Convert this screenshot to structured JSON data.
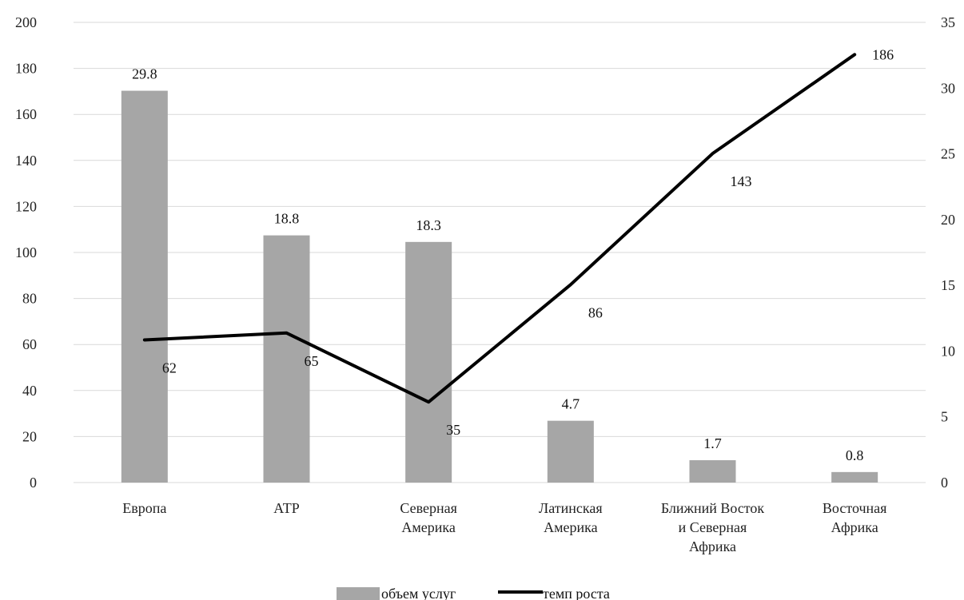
{
  "chart_data": {
    "type": "bar",
    "categories": [
      [
        "Европа"
      ],
      [
        "АТР"
      ],
      [
        "Северная",
        "Америка"
      ],
      [
        "Латинская",
        "Америка"
      ],
      [
        "Ближний Восток",
        "и Северная",
        "Африка"
      ],
      [
        "Восточная",
        "Африка"
      ]
    ],
    "series": [
      {
        "name": "объем услуг",
        "type": "bar",
        "axis": "right",
        "values": [
          29.8,
          18.8,
          18.3,
          4.7,
          1.7,
          0.8
        ],
        "labels": [
          "29.8",
          "18.8",
          "18.3",
          "4.7",
          "1.7",
          "0.8"
        ]
      },
      {
        "name": "темп роста",
        "type": "line",
        "axis": "left",
        "values": [
          62,
          65,
          35,
          86,
          143,
          186
        ],
        "labels": [
          "62",
          "65",
          "35",
          "86",
          "143",
          "186"
        ]
      }
    ],
    "left_axis": {
      "range": [
        0,
        200
      ],
      "ticks": [
        "0",
        "20",
        "40",
        "60",
        "80",
        "100",
        "120",
        "140",
        "160",
        "180",
        "200"
      ]
    },
    "right_axis": {
      "range": [
        0,
        35
      ],
      "ticks": [
        "0",
        "5",
        "10",
        "15",
        "20",
        "25",
        "30",
        "35"
      ]
    },
    "grid": true,
    "legend_position": "bottom",
    "colors": {
      "bar": "#a6a6a6",
      "line": "#000000",
      "grid": "#d9d9d9"
    }
  }
}
